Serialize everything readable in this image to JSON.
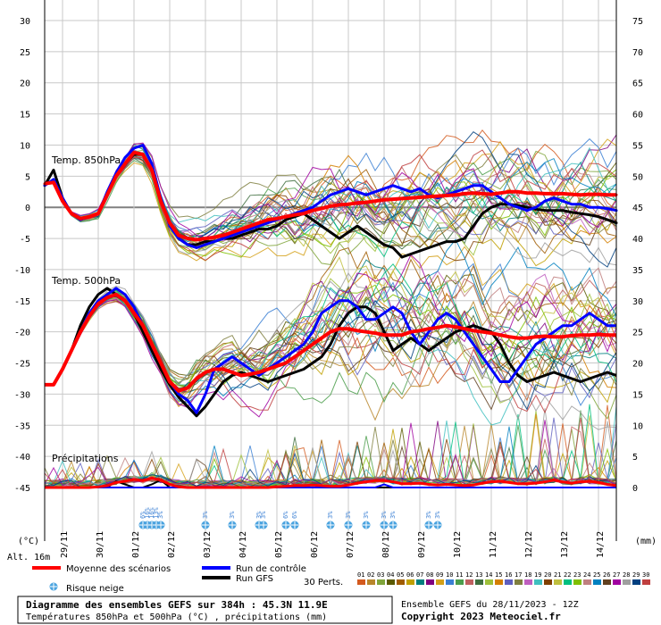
{
  "chart_data": {
    "type": "line",
    "title": "Diagramme des ensembles GEFS sur 384h : 45.3N 11.9E",
    "subtitle": "Températures 850hPa et 500hPa (°C) , précipitations (mm)",
    "run_info": "Ensemble GEFS du 28/11/2023 - 12Z",
    "copyright": "Copyright 2023 Meteociel.fr",
    "altitude": "Alt. 16m",
    "left_axis_unit": "(°C)",
    "right_axis_unit": "(mm)",
    "ylim_left": [
      -45,
      30
    ],
    "ylim_right": [
      0,
      75
    ],
    "left_ticks": [
      "30",
      "25",
      "20",
      "15",
      "10",
      "5",
      "0",
      "-5",
      "-10",
      "-15",
      "-20",
      "-25",
      "-30",
      "-35",
      "-40",
      "-45"
    ],
    "right_ticks": [
      "75",
      "70",
      "65",
      "60",
      "55",
      "50",
      "45",
      "40",
      "35",
      "30",
      "25",
      "20",
      "15",
      "10",
      "5",
      "0"
    ],
    "x_dates": [
      "29/11",
      "30/11",
      "01/12",
      "02/12",
      "03/12",
      "04/12",
      "05/12",
      "06/12",
      "07/12",
      "08/12",
      "09/12",
      "10/12",
      "11/12",
      "12/12",
      "13/12",
      "14/12"
    ],
    "panel_labels": {
      "t850": "Temp. 850hPa",
      "t500": "Temp. 500hPa",
      "precip": "Précipitations"
    },
    "x_times": [
      0,
      6,
      12,
      18,
      24,
      30,
      36,
      42,
      48,
      54,
      60,
      66,
      72,
      78,
      84,
      90,
      96,
      102,
      108,
      114,
      120,
      126,
      132,
      138,
      144,
      150,
      156,
      162,
      168,
      174,
      180,
      186,
      192,
      198,
      204,
      210,
      216,
      222,
      228,
      234,
      240,
      246,
      252,
      258,
      264,
      270,
      276,
      282,
      288,
      294,
      300,
      306,
      312,
      318,
      324,
      330,
      336,
      342,
      348,
      354,
      360,
      366,
      372,
      378,
      384
    ],
    "series": [
      {
        "name": "Moyenne des scénarios",
        "color": "#ff0000",
        "t850": [
          3.8,
          4.0,
          1.0,
          -1.0,
          -1.8,
          -1.5,
          -1.0,
          2.0,
          5.0,
          7.0,
          8.8,
          8.5,
          6.0,
          1.0,
          -2.5,
          -4.5,
          -5.0,
          -5.2,
          -5.0,
          -4.8,
          -4.5,
          -4.0,
          -3.5,
          -3.0,
          -2.5,
          -2.0,
          -1.8,
          -1.5,
          -1.2,
          -1.0,
          -0.5,
          -0.2,
          0.2,
          0.4,
          0.5,
          0.7,
          0.8,
          1.0,
          1.2,
          1.3,
          1.4,
          1.5,
          1.6,
          1.7,
          1.8,
          1.9,
          2.0,
          2.2,
          2.3,
          2.2,
          2.1,
          2.3,
          2.5,
          2.5,
          2.3,
          2.3,
          2.2,
          2.2,
          2.2,
          2.1,
          2.0,
          2.1,
          2.1,
          2.0,
          2.0
        ],
        "t500": [
          -28.5,
          -28.5,
          -26,
          -23,
          -20,
          -17.5,
          -15.5,
          -14.5,
          -14,
          -15,
          -17,
          -19,
          -22,
          -25,
          -28,
          -29.5,
          -29,
          -27.5,
          -26.5,
          -26,
          -26,
          -26.5,
          -27,
          -26.8,
          -26.5,
          -26,
          -25.5,
          -25,
          -24,
          -23,
          -22,
          -21,
          -20,
          -19.5,
          -19.5,
          -19.8,
          -20,
          -20.2,
          -20.5,
          -20.5,
          -20.5,
          -20,
          -19.8,
          -19.5,
          -19.3,
          -19,
          -19.2,
          -19.5,
          -19.8,
          -20,
          -20.2,
          -20.5,
          -20.8,
          -21,
          -21,
          -20.8,
          -20.7,
          -20.8,
          -20.8,
          -20.6,
          -20.5,
          -20.5,
          -20.4,
          -20.5,
          -20.5
        ],
        "precip": [
          0,
          0,
          0,
          0,
          0,
          0,
          0.1,
          0.3,
          0.8,
          1,
          1.3,
          1.1,
          1.5,
          1.2,
          0.5,
          0.1,
          0,
          0,
          0,
          0,
          0,
          0,
          0,
          0,
          0,
          0,
          0.1,
          0.2,
          0.3,
          0.3,
          0.4,
          0.3,
          0.2,
          0.2,
          0.4,
          0.7,
          0.9,
          1.1,
          1.1,
          0.9,
          0.6,
          0.6,
          0.7,
          0.5,
          0.4,
          0.5,
          0.4,
          0.3,
          0.4,
          0.7,
          0.9,
          1.0,
          0.8,
          0.6,
          0.6,
          0.7,
          0.9,
          1.2,
          0.9,
          0.7,
          0.9,
          1.0,
          0.8,
          0.5,
          0.3
        ]
      },
      {
        "name": "Run de contrôle",
        "color": "#0000ff",
        "t850": [
          3.5,
          4.5,
          1.5,
          -1.0,
          -2.0,
          -1.5,
          -1.0,
          2.5,
          5.5,
          8.0,
          9.5,
          10,
          7,
          1.5,
          -3,
          -5,
          -6,
          -6.5,
          -6,
          -5.5,
          -5,
          -4.5,
          -4,
          -3.5,
          -3,
          -2.5,
          -2,
          -1.5,
          -1,
          -0.5,
          0,
          1,
          2,
          2.5,
          3,
          2.5,
          2,
          2.5,
          3,
          3.5,
          3,
          2.5,
          3,
          2,
          1.5,
          2,
          2.5,
          3,
          3.5,
          3.5,
          2.5,
          1.5,
          0.5,
          0,
          -0.5,
          0,
          1,
          1.5,
          1,
          0.5,
          0.5,
          0,
          0,
          -0.2,
          -0.5
        ],
        "t500": [
          -28.5,
          -28.5,
          -26,
          -23,
          -20,
          -17,
          -15,
          -14,
          -13,
          -14,
          -16,
          -19,
          -22,
          -25,
          -28,
          -30,
          -31,
          -33,
          -30,
          -26,
          -25,
          -24,
          -25,
          -26,
          -27,
          -26,
          -25,
          -24,
          -23,
          -22,
          -20,
          -17,
          -16,
          -15,
          -15,
          -16,
          -18,
          -18,
          -17,
          -16,
          -17,
          -20,
          -22,
          -20,
          -18,
          -17,
          -18,
          -20,
          -22,
          -24,
          -26,
          -28,
          -28,
          -26,
          -24,
          -22,
          -21,
          -20,
          -19,
          -19,
          -18,
          -17,
          -18,
          -19,
          -19
        ],
        "precip": [
          0,
          0,
          0,
          0,
          0,
          0,
          0,
          0,
          0,
          0,
          0,
          0,
          0,
          0,
          0,
          0,
          0,
          0,
          0,
          0,
          0,
          0,
          0,
          0,
          0,
          0,
          0,
          0,
          0,
          0,
          0,
          0,
          0,
          0,
          0,
          0,
          0,
          0,
          0.5,
          0,
          0,
          0,
          0,
          0,
          0,
          0,
          0,
          0,
          0,
          0,
          0,
          0,
          0,
          0,
          0,
          0,
          0,
          0,
          0,
          0,
          0,
          0,
          0,
          0,
          0
        ]
      },
      {
        "name": "Run GFS",
        "color": "#000000",
        "t850": [
          3.5,
          6,
          1.5,
          -1,
          -2,
          -1.5,
          -1,
          2,
          5,
          7,
          8.5,
          8.5,
          6,
          1,
          -2.5,
          -5,
          -6,
          -6,
          -5.5,
          -5.5,
          -5,
          -5,
          -4.5,
          -4,
          -3.5,
          -3.5,
          -3,
          -2,
          -1.5,
          -1,
          -2,
          -3,
          -4,
          -5,
          -4,
          -3,
          -4,
          -5,
          -6,
          -6.5,
          -8,
          -7.5,
          -7,
          -6.5,
          -6,
          -5.5,
          -5.5,
          -5,
          -3,
          -1,
          0,
          0.5,
          0.5,
          0.3,
          0,
          -0.3,
          -0.5,
          -0.5,
          -0.5,
          -0.8,
          -1,
          -1.2,
          -1.5,
          -2,
          -2.5
        ],
        "t500": [
          -28.5,
          -28.5,
          -26,
          -23,
          -19,
          -16,
          -14,
          -13,
          -14,
          -15,
          -17,
          -20,
          -23,
          -26,
          -28.5,
          -30.5,
          -32,
          -33.5,
          -32,
          -30,
          -28,
          -27,
          -26.5,
          -27,
          -27.5,
          -28,
          -27.5,
          -27,
          -26.5,
          -26,
          -25,
          -24,
          -22,
          -19,
          -17,
          -16,
          -16,
          -17,
          -20,
          -23,
          -22,
          -21,
          -22,
          -23,
          -22,
          -21,
          -20,
          -19.5,
          -19,
          -19.5,
          -20,
          -22,
          -25,
          -27,
          -28,
          -27.5,
          -27,
          -26.5,
          -27,
          -27.5,
          -28,
          -27.5,
          -27,
          -26.5,
          -27
        ],
        "precip": [
          0,
          0,
          0,
          0,
          0,
          0,
          0,
          0,
          1,
          0.5,
          0,
          0,
          0.5,
          1.2,
          0,
          0,
          0,
          0,
          0,
          0,
          0,
          0,
          0,
          0,
          0,
          0,
          0,
          0,
          0,
          0,
          0,
          0,
          0,
          0,
          0,
          0,
          0,
          0,
          0,
          0,
          0,
          0,
          0,
          0,
          0,
          0,
          0,
          0,
          0,
          0,
          0,
          0,
          0,
          0,
          0,
          0,
          0,
          0,
          0,
          0,
          0,
          0,
          0,
          0,
          0
        ]
      }
    ],
    "snow_markers": [
      {
        "t": 66,
        "pct": "6%"
      },
      {
        "t": 69,
        "pct": "16%"
      },
      {
        "t": 72,
        "pct": "16%"
      },
      {
        "t": 75,
        "pct": "13%"
      },
      {
        "t": 78,
        "pct": "3%"
      },
      {
        "t": 108,
        "pct": "3%"
      },
      {
        "t": 126,
        "pct": "3%"
      },
      {
        "t": 144,
        "pct": "3%"
      },
      {
        "t": 147,
        "pct": "3%"
      },
      {
        "t": 162,
        "pct": "6%"
      },
      {
        "t": 168,
        "pct": "6%"
      },
      {
        "t": 192,
        "pct": "3%"
      },
      {
        "t": 204,
        "pct": "3%"
      },
      {
        "t": 216,
        "pct": "3%"
      },
      {
        "t": 228,
        "pct": "3%"
      },
      {
        "t": 234,
        "pct": "3%"
      },
      {
        "t": 258,
        "pct": "3%"
      },
      {
        "t": 264,
        "pct": "3%"
      }
    ],
    "ensemble_count": 30,
    "ensemble_label": "30 Perts.",
    "ensemble_ids": [
      "01",
      "02",
      "03",
      "04",
      "05",
      "06",
      "07",
      "08",
      "09",
      "10",
      "11",
      "12",
      "13",
      "14",
      "15",
      "16",
      "17",
      "18",
      "19",
      "20",
      "21",
      "22",
      "23",
      "24",
      "25",
      "26",
      "27",
      "28",
      "29",
      "30"
    ],
    "ensemble_colors": [
      "#d45a1e",
      "#b8862a",
      "#7fa53a",
      "#5a5a00",
      "#a05c00",
      "#c0a000",
      "#007f7f",
      "#7f007f",
      "#d4a017",
      "#3a7fd4",
      "#4b9e4b",
      "#c06060",
      "#3f6f3f",
      "#9ec03a",
      "#d47f00",
      "#5f5fbf",
      "#7f7f3f",
      "#bf5fbf",
      "#3fbfbf",
      "#7f3f00",
      "#bfbf3f",
      "#00bf7f",
      "#7fbf00",
      "#bf7f7f",
      "#0080c0",
      "#604020",
      "#a000a0",
      "#9f9f9f",
      "#003f7f",
      "#bf3f3f"
    ],
    "legend": {
      "mean": "Moyenne des scénarios",
      "control": "Run de contrôle",
      "gfs": "Run GFS",
      "snow": "Risque neige"
    }
  }
}
